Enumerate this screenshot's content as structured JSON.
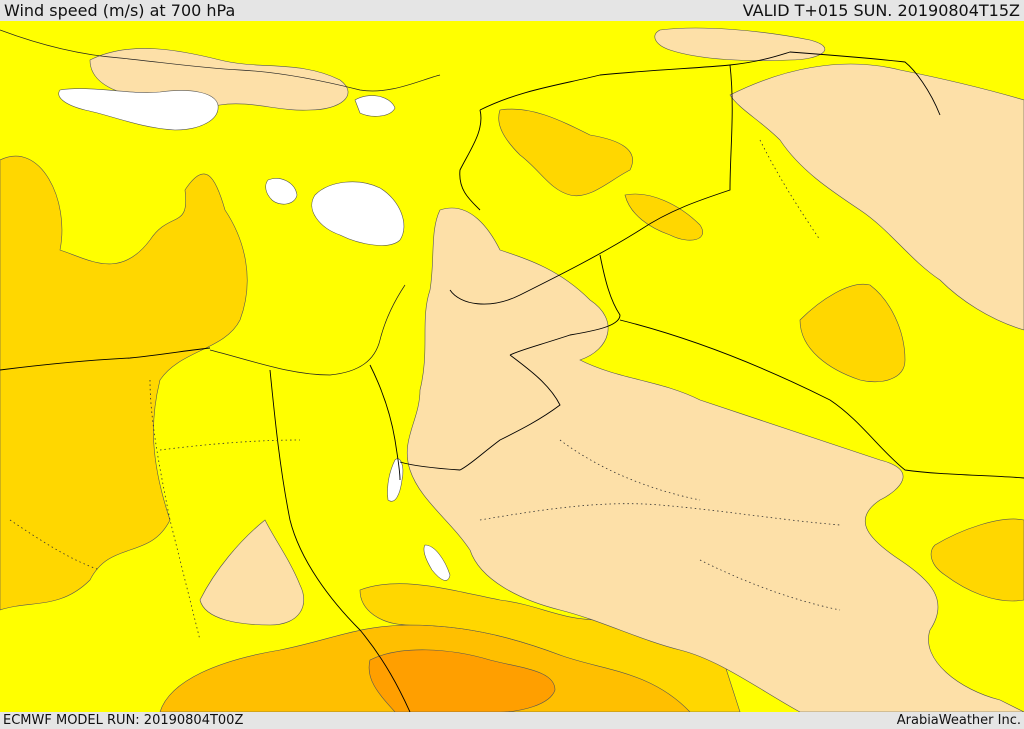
{
  "header": {
    "title": "Wind speed (m/s) at 700 hPa",
    "valid": "VALID T+015 SUN. 20190804T15Z"
  },
  "footer": {
    "model_run": "ECMWF MODEL RUN: 20190804T00Z",
    "credit": "ArabiaWeather Inc."
  },
  "colors": {
    "background_fill": "#ffff00",
    "peach_fill": "#fde0a8",
    "gold_fill": "#ffd700",
    "orange_fill": "#ffbf00",
    "dark_orange_fill": "#ff9f00",
    "calm_fill": "#ffffff",
    "contour_line": "#333333",
    "border_line": "#000000"
  }
}
